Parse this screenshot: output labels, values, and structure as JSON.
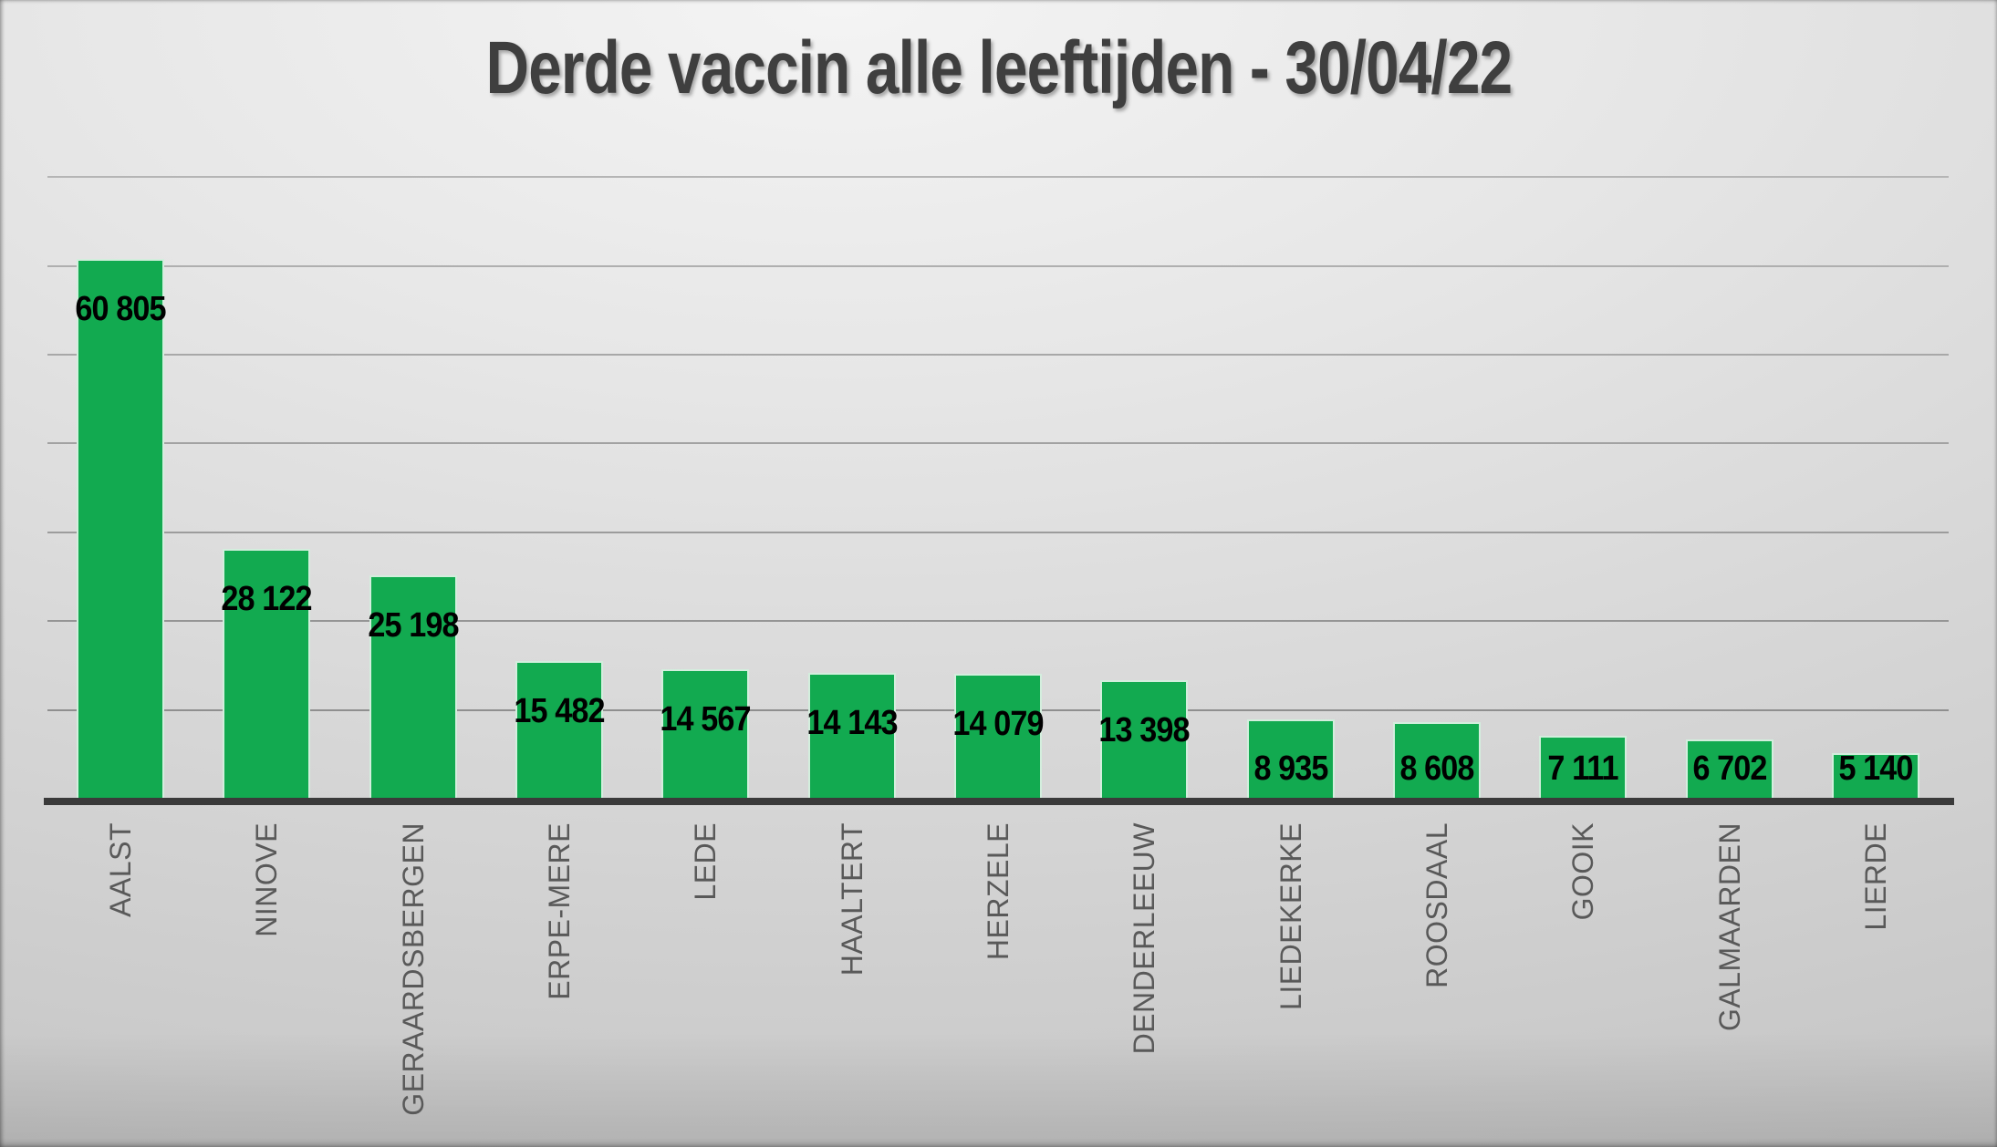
{
  "chart_data": {
    "type": "bar",
    "title": "Derde vaccin alle leeftijden - 30/04/22",
    "categories": [
      "AALST",
      "NINOVE",
      "GERAARDSBERGEN",
      "ERPE-MERE",
      "LEDE",
      "HAALTERT",
      "HERZELE",
      "DENDERLEEUW",
      "LIEDEKERKE",
      "ROOSDAAL",
      "GOOIK",
      "GALMAARDEN",
      "LIERDE"
    ],
    "values": [
      60805,
      28122,
      25198,
      15482,
      14567,
      14143,
      14079,
      13398,
      8935,
      8608,
      7111,
      6702,
      5140
    ],
    "value_labels": [
      "60 805",
      "28 122",
      "25 198",
      "15 482",
      "14 567",
      "14 143",
      "14 079",
      "13 398",
      "8 935",
      "8 608",
      "7 111",
      "6 702",
      "5 140"
    ],
    "xlabel": "",
    "ylabel": "",
    "ylim": [
      0,
      70000
    ],
    "gridline_step": 10000,
    "grid": true,
    "y_tick_labels_visible": false,
    "legend": "none",
    "colors": {
      "bar_fill": "#12aa50",
      "bar_outline": "#d3eedd",
      "value_label": "#000000",
      "category_label": "#595959",
      "axis_line": "#3a3a3a",
      "gridline_dark": "#8f8f8f",
      "gridline_light": "#b4b4b4",
      "title": "#3f3f3f"
    }
  }
}
